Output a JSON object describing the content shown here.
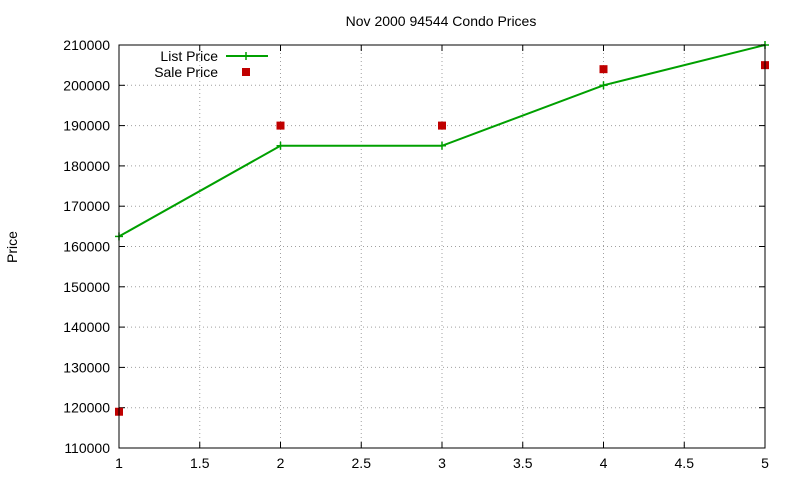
{
  "chart_data": {
    "type": "line",
    "title": "Nov 2000 94544 Condo Prices",
    "xlabel": "",
    "ylabel": "Price",
    "xlim": [
      1,
      5
    ],
    "ylim": [
      110000,
      210000
    ],
    "xticks": [
      1,
      1.5,
      2,
      2.5,
      3,
      3.5,
      4,
      4.5,
      5
    ],
    "yticks": [
      110000,
      120000,
      130000,
      140000,
      150000,
      160000,
      170000,
      180000,
      190000,
      200000,
      210000
    ],
    "grid": true,
    "legend_position": "top-left",
    "series": [
      {
        "name": "List Price",
        "style": "line-points",
        "marker": "plus",
        "color": "#00a000",
        "x": [
          1,
          2,
          3,
          4,
          5
        ],
        "y": [
          162500,
          185000,
          185000,
          200000,
          210000
        ]
      },
      {
        "name": "Sale Price",
        "style": "points",
        "marker": "square",
        "color": "#c00000",
        "x": [
          1,
          2,
          3,
          4,
          5
        ],
        "y": [
          119000,
          190000,
          190000,
          204000,
          205000
        ]
      }
    ]
  }
}
